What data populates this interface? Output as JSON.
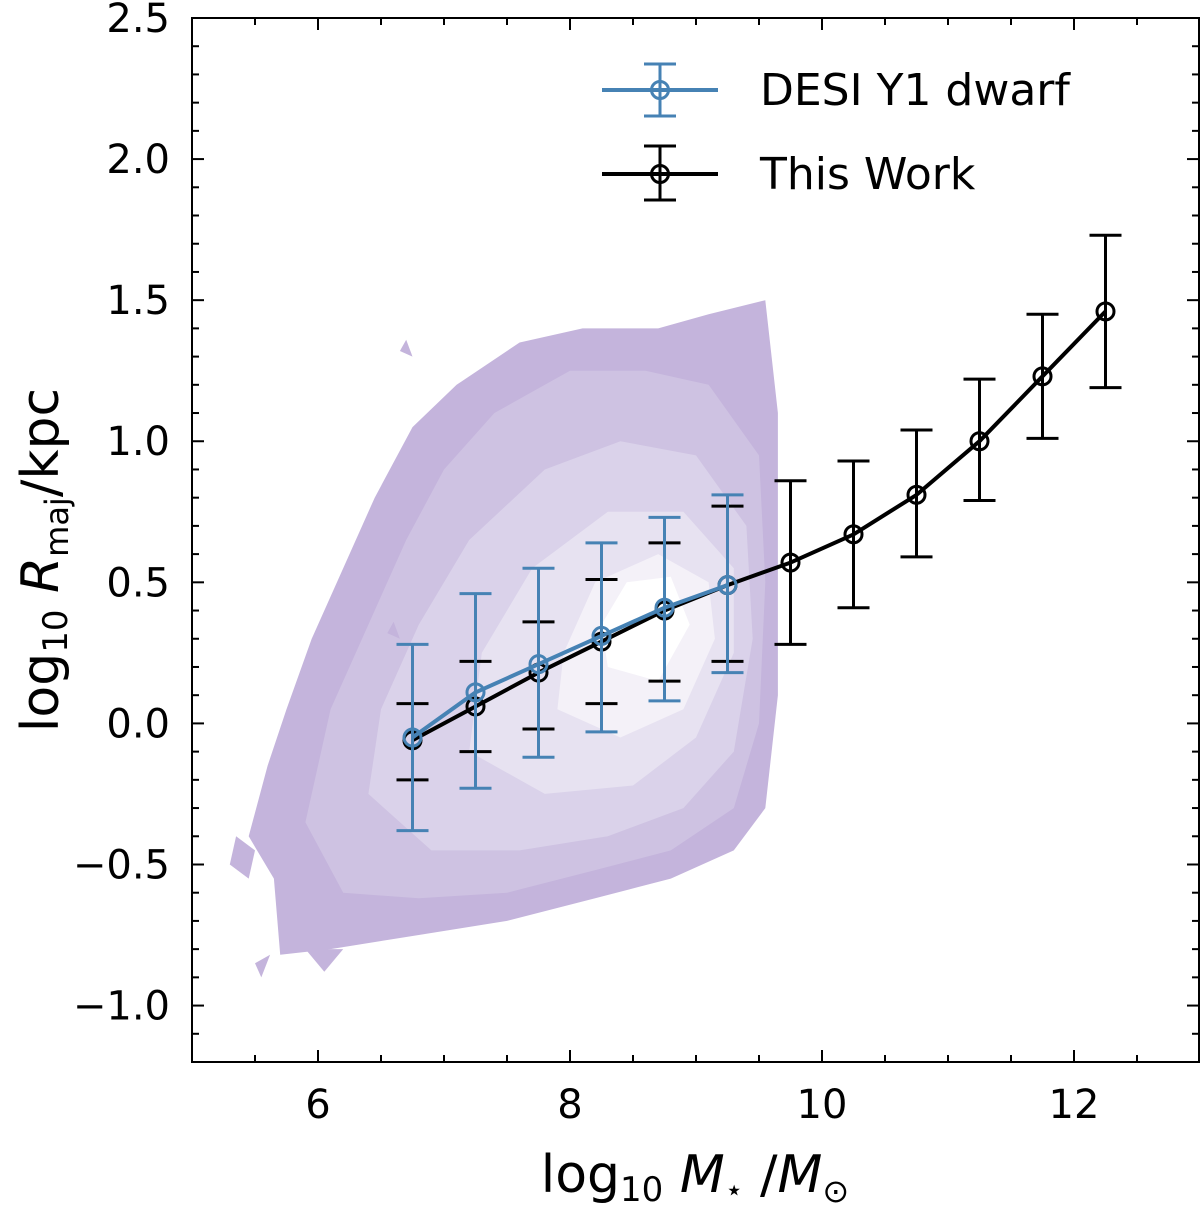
{
  "chart_data": {
    "type": "line",
    "xlabel": {
      "prefix": "log",
      "sub": "10",
      "var": "M",
      "var_sub": "⋆",
      "sep": "/",
      "var2": "M",
      "var2_sub": "⊙"
    },
    "ylabel": {
      "prefix": "log",
      "sub": "10",
      "var": "R",
      "var_sub": "maj",
      "unit": "/kpc"
    },
    "xlim": [
      5.0,
      13.0
    ],
    "ylim": [
      -1.2,
      2.5
    ],
    "xticks": [
      "6",
      "8",
      "10",
      "12"
    ],
    "yticks": [
      "2.5",
      "2.0",
      "1.5",
      "1.0",
      "0.5",
      "0.0",
      "−0.5",
      "−1.0"
    ],
    "series": [
      {
        "name": "This Work",
        "color": "#000000",
        "x": [
          6.75,
          7.25,
          7.75,
          8.25,
          8.75,
          9.25,
          9.75,
          10.25,
          10.75,
          11.25,
          11.75,
          12.25
        ],
        "y": [
          -0.06,
          0.06,
          0.18,
          0.29,
          0.4,
          0.49,
          0.57,
          0.67,
          0.81,
          1.0,
          1.23,
          1.46
        ],
        "yerr_low": [
          -0.2,
          -0.1,
          -0.02,
          0.07,
          0.15,
          0.22,
          0.28,
          0.41,
          0.59,
          0.79,
          1.01,
          1.19
        ],
        "yerr_high": [
          0.07,
          0.22,
          0.36,
          0.51,
          0.64,
          0.77,
          0.86,
          0.93,
          1.04,
          1.22,
          1.45,
          1.73
        ]
      },
      {
        "name": "DESI Y1 dwarf",
        "color": "#4682b4",
        "x": [
          6.75,
          7.25,
          7.75,
          8.25,
          8.75,
          9.25
        ],
        "y": [
          -0.05,
          0.11,
          0.21,
          0.31,
          0.41,
          0.49
        ],
        "yerr_low": [
          -0.38,
          -0.23,
          -0.12,
          -0.03,
          0.08,
          0.18
        ],
        "yerr_high": [
          0.28,
          0.46,
          0.55,
          0.64,
          0.73,
          0.81
        ]
      }
    ],
    "contour": {
      "colors": [
        "#c4b4dc",
        "#cec2e2",
        "#dad2ea",
        "#e7e2f1",
        "#f4f1f8",
        "#ffffff"
      ],
      "levels": [
        [
          [
            5.45,
            -0.4
          ],
          [
            5.65,
            -0.55
          ],
          [
            5.7,
            -0.82
          ],
          [
            6.1,
            -0.8
          ],
          [
            6.8,
            -0.75
          ],
          [
            7.5,
            -0.7
          ],
          [
            8.2,
            -0.62
          ],
          [
            8.8,
            -0.55
          ],
          [
            9.3,
            -0.45
          ],
          [
            9.55,
            -0.3
          ],
          [
            9.65,
            0.1
          ],
          [
            9.65,
            0.6
          ],
          [
            9.65,
            1.1
          ],
          [
            9.55,
            1.5
          ],
          [
            9.1,
            1.45
          ],
          [
            8.7,
            1.4
          ],
          [
            8.1,
            1.4
          ],
          [
            7.6,
            1.35
          ],
          [
            7.1,
            1.2
          ],
          [
            6.75,
            1.05
          ],
          [
            6.45,
            0.8
          ],
          [
            6.2,
            0.55
          ],
          [
            5.95,
            0.3
          ],
          [
            5.75,
            0.05
          ],
          [
            5.6,
            -0.15
          ]
        ],
        [
          [
            5.9,
            -0.35
          ],
          [
            6.2,
            -0.6
          ],
          [
            6.8,
            -0.62
          ],
          [
            7.5,
            -0.6
          ],
          [
            8.2,
            -0.52
          ],
          [
            8.8,
            -0.45
          ],
          [
            9.3,
            -0.3
          ],
          [
            9.5,
            0.0
          ],
          [
            9.55,
            0.5
          ],
          [
            9.5,
            0.95
          ],
          [
            9.1,
            1.2
          ],
          [
            8.6,
            1.25
          ],
          [
            8.0,
            1.25
          ],
          [
            7.4,
            1.1
          ],
          [
            7.0,
            0.9
          ],
          [
            6.7,
            0.65
          ],
          [
            6.4,
            0.35
          ],
          [
            6.1,
            0.05
          ]
        ],
        [
          [
            6.4,
            -0.25
          ],
          [
            6.9,
            -0.45
          ],
          [
            7.6,
            -0.45
          ],
          [
            8.3,
            -0.4
          ],
          [
            8.9,
            -0.3
          ],
          [
            9.3,
            -0.1
          ],
          [
            9.45,
            0.3
          ],
          [
            9.4,
            0.7
          ],
          [
            9.0,
            0.95
          ],
          [
            8.4,
            1.0
          ],
          [
            7.8,
            0.9
          ],
          [
            7.2,
            0.65
          ],
          [
            6.8,
            0.35
          ],
          [
            6.5,
            0.05
          ]
        ],
        [
          [
            7.2,
            -0.1
          ],
          [
            7.8,
            -0.25
          ],
          [
            8.5,
            -0.22
          ],
          [
            9.0,
            -0.05
          ],
          [
            9.3,
            0.25
          ],
          [
            9.3,
            0.55
          ],
          [
            8.9,
            0.75
          ],
          [
            8.3,
            0.75
          ],
          [
            7.7,
            0.55
          ],
          [
            7.3,
            0.25
          ]
        ],
        [
          [
            7.9,
            0.05
          ],
          [
            8.4,
            -0.05
          ],
          [
            8.9,
            0.05
          ],
          [
            9.15,
            0.3
          ],
          [
            9.1,
            0.5
          ],
          [
            8.7,
            0.6
          ],
          [
            8.2,
            0.5
          ],
          [
            7.95,
            0.25
          ]
        ],
        [
          [
            8.3,
            0.2
          ],
          [
            8.7,
            0.15
          ],
          [
            8.95,
            0.35
          ],
          [
            8.8,
            0.52
          ],
          [
            8.45,
            0.5
          ],
          [
            8.25,
            0.35
          ]
        ]
      ],
      "specks": [
        [
          [
            5.35,
            -0.4
          ],
          [
            5.5,
            -0.45
          ],
          [
            5.45,
            -0.55
          ],
          [
            5.3,
            -0.5
          ]
        ],
        [
          [
            5.5,
            -0.85
          ],
          [
            5.62,
            -0.82
          ],
          [
            5.55,
            -0.9
          ]
        ],
        [
          [
            6.55,
            0.32
          ],
          [
            6.65,
            0.3
          ],
          [
            6.6,
            0.36
          ]
        ],
        [
          [
            6.65,
            1.32
          ],
          [
            6.75,
            1.3
          ],
          [
            6.7,
            1.36
          ]
        ],
        [
          [
            5.9,
            -0.8
          ],
          [
            6.05,
            -0.88
          ],
          [
            6.2,
            -0.8
          ]
        ]
      ]
    },
    "legend": {
      "position": "top-right",
      "entries": [
        "DESI Y1 dwarf",
        "This Work"
      ]
    }
  }
}
